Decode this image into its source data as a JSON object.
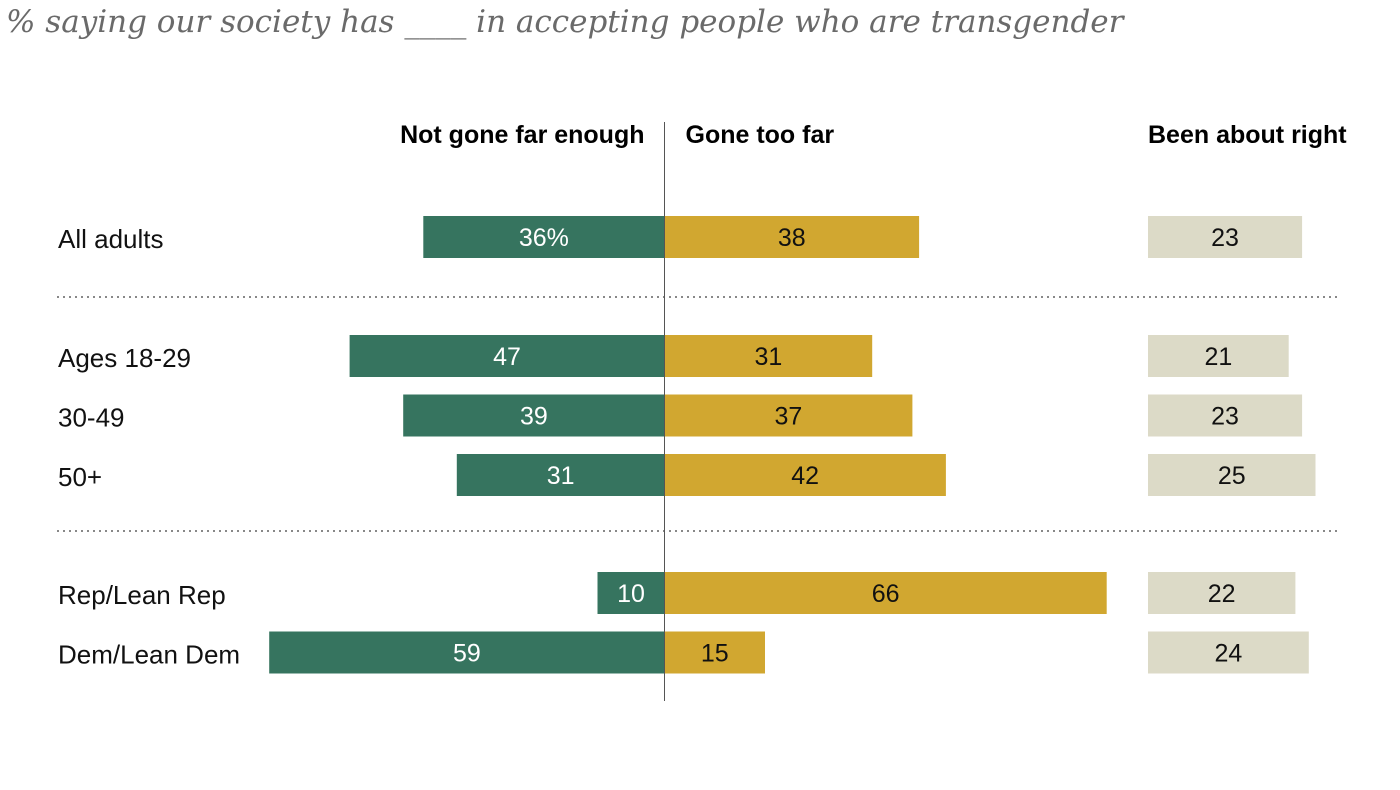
{
  "chart_data": {
    "type": "bar",
    "subtitle": "% saying our society has ____ in accepting people who are transgender",
    "percent_suffix": "%",
    "series": [
      {
        "name": "Not gone far enough",
        "color": "#36745f"
      },
      {
        "name": "Gone too far",
        "color": "#d1a730"
      },
      {
        "name": "Been about right",
        "color": "#dcdac7"
      }
    ],
    "groups": [
      {
        "rows": [
          {
            "label": "All adults",
            "not_gone_far_enough": 36,
            "gone_too_far": 38,
            "been_about_right": 23
          }
        ]
      },
      {
        "rows": [
          {
            "label": "Ages 18-29",
            "not_gone_far_enough": 47,
            "gone_too_far": 31,
            "been_about_right": 21
          },
          {
            "label": "30-49",
            "not_gone_far_enough": 39,
            "gone_too_far": 37,
            "been_about_right": 23
          },
          {
            "label": "50+",
            "not_gone_far_enough": 31,
            "gone_too_far": 42,
            "been_about_right": 25
          }
        ]
      },
      {
        "rows": [
          {
            "label": "Rep/Lean Rep",
            "not_gone_far_enough": 10,
            "gone_too_far": 66,
            "been_about_right": 22
          },
          {
            "label": "Dem/Lean Dem",
            "not_gone_far_enough": 59,
            "gone_too_far": 15,
            "been_about_right": 24
          }
        ]
      }
    ]
  }
}
